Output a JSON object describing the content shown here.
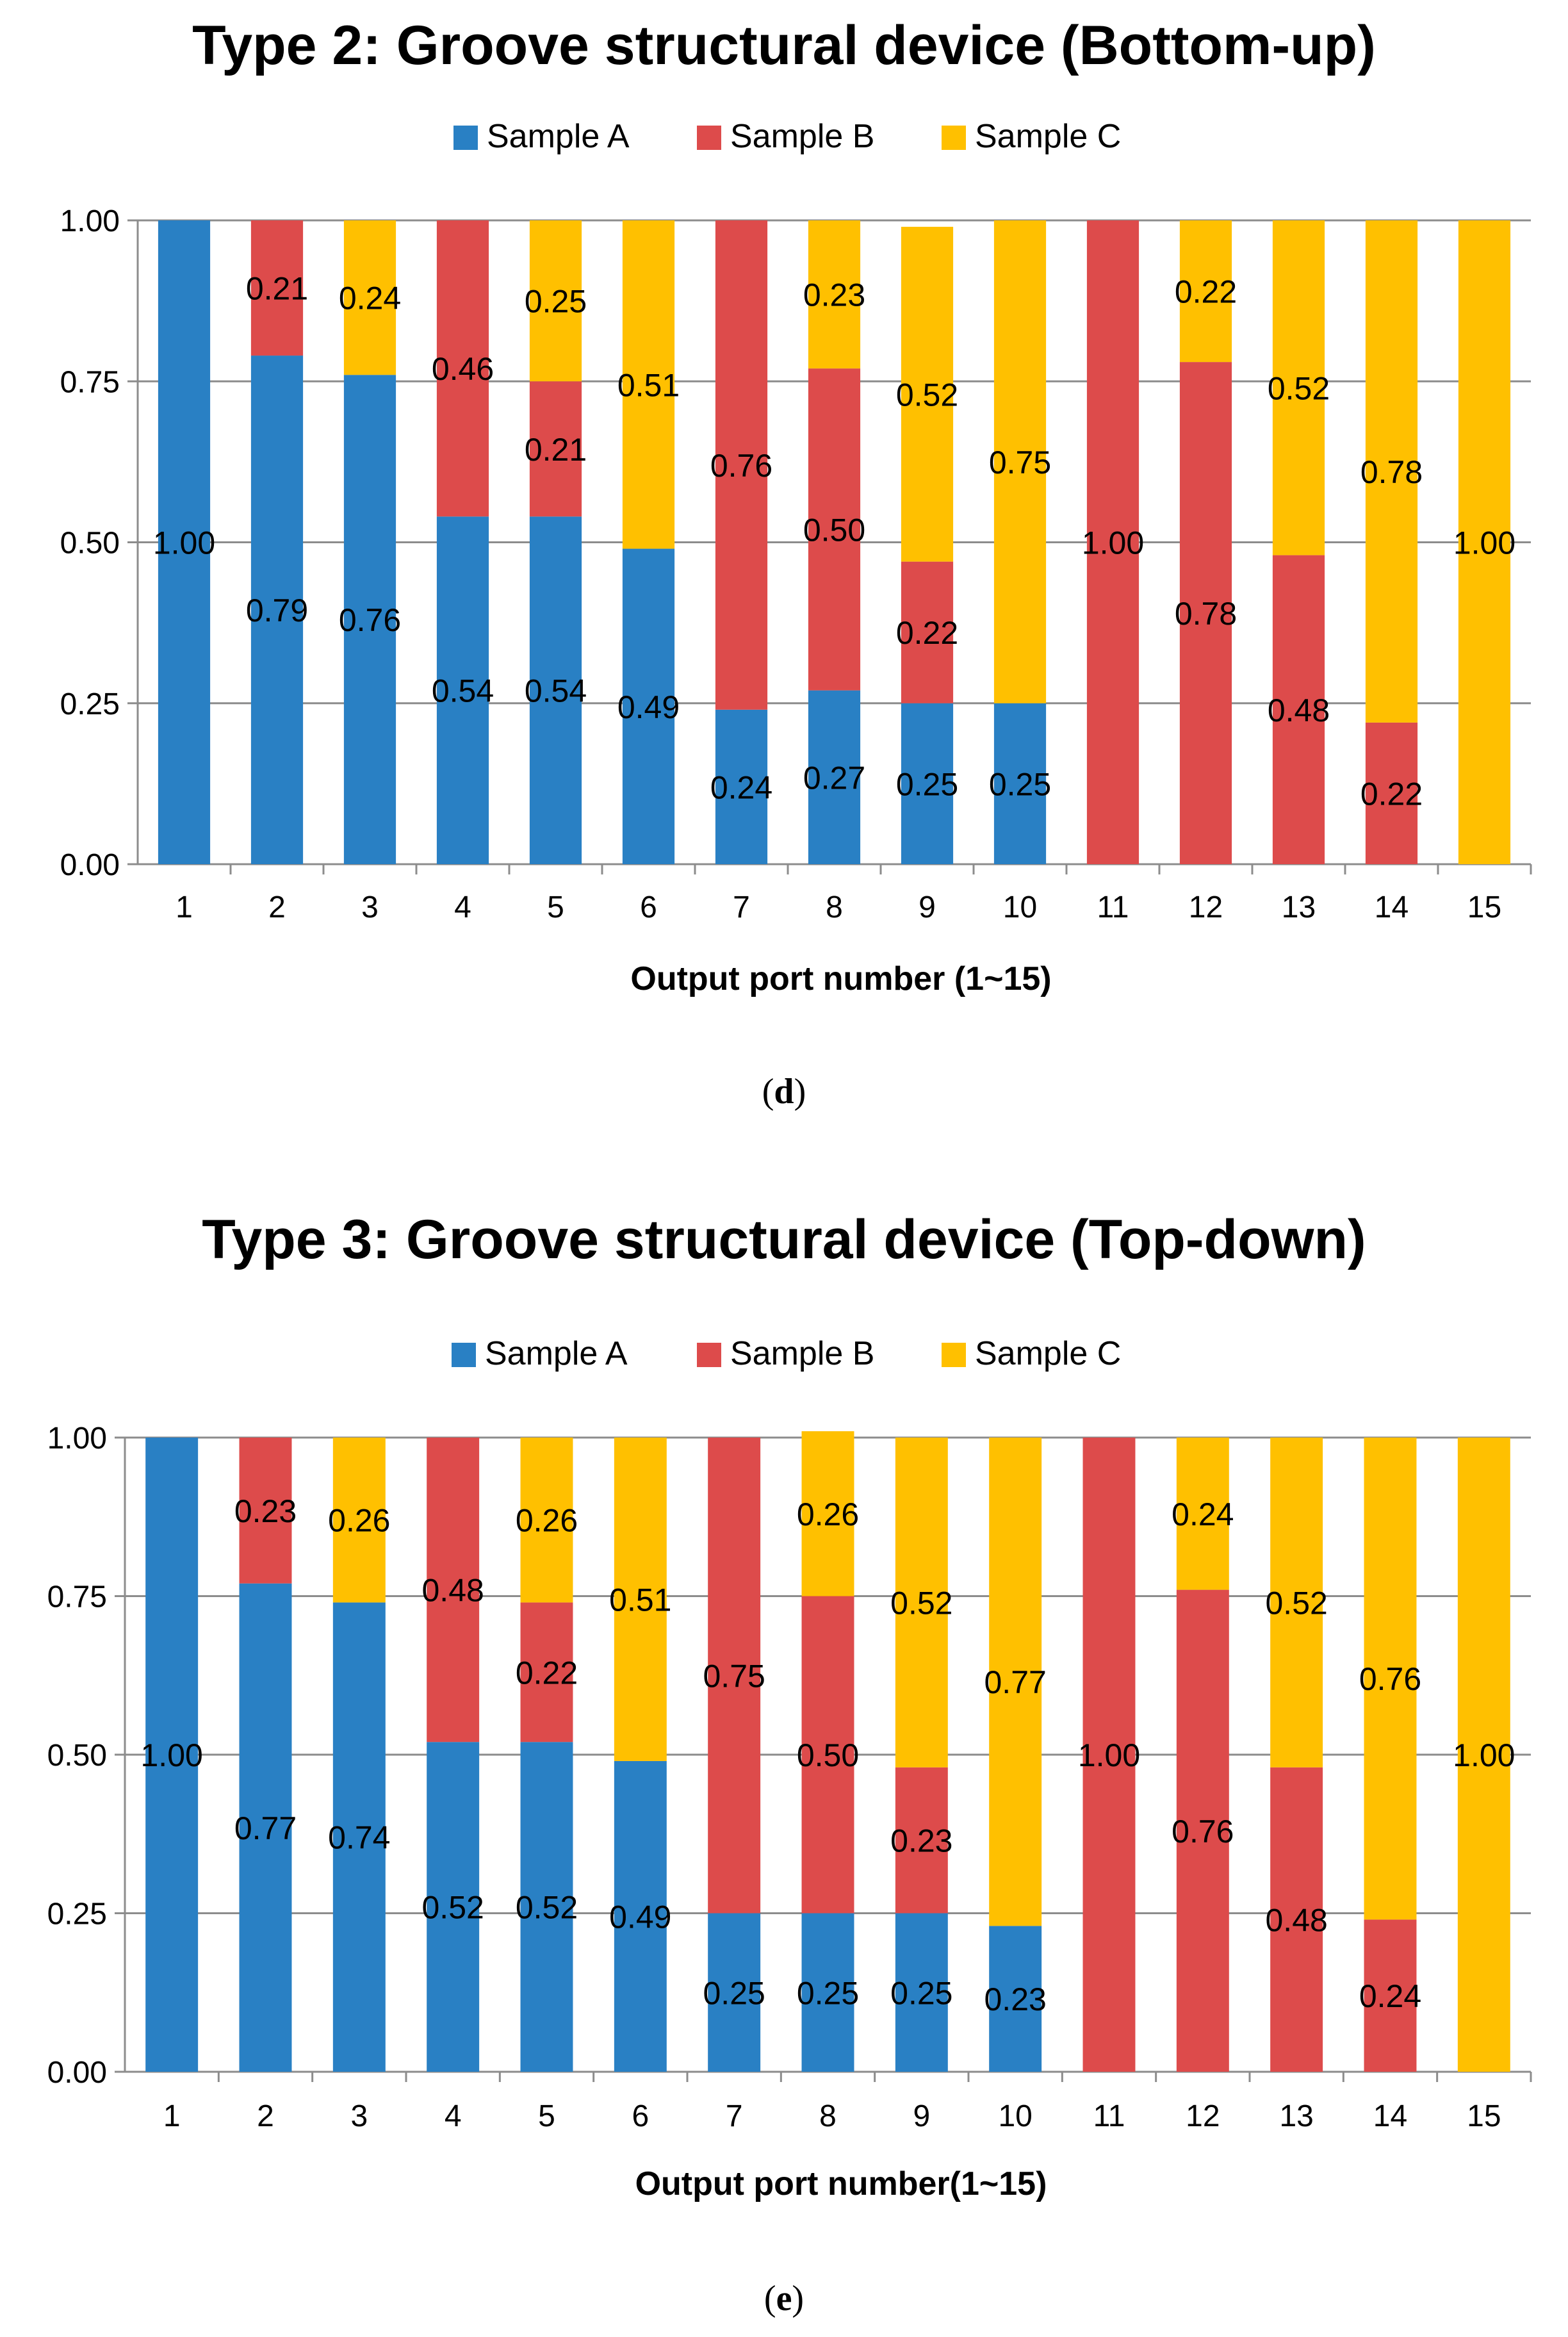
{
  "colors": {
    "sample_a": "#2980C4",
    "sample_b": "#DD4B4B",
    "sample_c": "#FFC000",
    "grid": "#8C8C8C",
    "axis": "#8C8C8C"
  },
  "chart_data": [
    {
      "type": "bar",
      "stacked": true,
      "title": "Type 2: Groove structural device (Bottom-up)",
      "xlabel": "Output  port number (1~15)",
      "ylabel": "",
      "ylim": [
        0,
        1
      ],
      "yticks": [
        "0.00",
        "0.25",
        "0.50",
        "0.75",
        "1.00"
      ],
      "legend": [
        "Sample A",
        "Sample B",
        "Sample C"
      ],
      "legend_position": "top",
      "grid": true,
      "caption": {
        "open": "(",
        "letter": "d",
        "close": ")"
      },
      "categories": [
        "1",
        "2",
        "3",
        "4",
        "5",
        "6",
        "7",
        "8",
        "9",
        "10",
        "11",
        "12",
        "13",
        "14",
        "15"
      ],
      "series": [
        {
          "name": "Sample A",
          "values": [
            1.0,
            0.79,
            0.76,
            0.54,
            0.54,
            0.49,
            0.24,
            0.27,
            0.25,
            0.25,
            0,
            0,
            0,
            0,
            0
          ],
          "labels": [
            "1.00",
            "0.79",
            "0.76",
            "0.54",
            "0.54",
            "0.49",
            "0.24",
            "0.27",
            "0.25",
            "0.25",
            "",
            "",
            "",
            "",
            ""
          ]
        },
        {
          "name": "Sample B",
          "values": [
            0,
            0.21,
            0,
            0.46,
            0.21,
            0,
            0.76,
            0.5,
            0.22,
            0,
            1.0,
            0.78,
            0.48,
            0.22,
            0
          ],
          "labels": [
            "",
            "0.21",
            "",
            "0.46",
            "0.21",
            "",
            "0.76",
            "0.50",
            "0.22",
            "",
            "1.00",
            "0.78",
            "0.48",
            "0.22",
            ""
          ]
        },
        {
          "name": "Sample C",
          "values": [
            0,
            0,
            0.24,
            0,
            0.25,
            0.51,
            0,
            0.23,
            0.52,
            0.75,
            0,
            0.22,
            0.52,
            0.78,
            1.0
          ],
          "labels": [
            "",
            "",
            "0.24",
            "",
            "0.25",
            "0.51",
            "",
            "0.23",
            "0.52",
            "0.75",
            "",
            "0.22",
            "0.52",
            "0.78",
            "1.00"
          ]
        }
      ]
    },
    {
      "type": "bar",
      "stacked": true,
      "title": "Type 3: Groove structural device (Top-down)",
      "xlabel": "Output port number(1~15)",
      "ylabel": "",
      "ylim": [
        0,
        1
      ],
      "yticks": [
        "0.00",
        "0.25",
        "0.50",
        "0.75",
        "1.00"
      ],
      "legend": [
        "Sample A",
        "Sample B",
        "Sample C"
      ],
      "legend_position": "top",
      "grid": true,
      "caption": {
        "open": "(",
        "letter": "e",
        "close": ")"
      },
      "categories": [
        "1",
        "2",
        "3",
        "4",
        "5",
        "6",
        "7",
        "8",
        "9",
        "10",
        "11",
        "12",
        "13",
        "14",
        "15"
      ],
      "series": [
        {
          "name": "Sample A",
          "values": [
            1.0,
            0.77,
            0.74,
            0.52,
            0.52,
            0.49,
            0.25,
            0.25,
            0.25,
            0.23,
            0,
            0,
            0,
            0,
            0
          ],
          "labels": [
            "1.00",
            "0.77",
            "0.74",
            "0.52",
            "0.52",
            "0.49",
            "0.25",
            "0.25",
            "0.25",
            "0.23",
            "",
            "",
            "",
            "",
            ""
          ]
        },
        {
          "name": "Sample B",
          "values": [
            0,
            0.23,
            0,
            0.48,
            0.22,
            0,
            0.75,
            0.5,
            0.23,
            0,
            1.0,
            0.76,
            0.48,
            0.24,
            0
          ],
          "labels": [
            "",
            "0.23",
            "",
            "0.48",
            "0.22",
            "",
            "0.75",
            "0.50",
            "0.23",
            "",
            "1.00",
            "0.76",
            "0.48",
            "0.24",
            ""
          ]
        },
        {
          "name": "Sample C",
          "values": [
            0,
            0,
            0.26,
            0,
            0.26,
            0.51,
            0,
            0.26,
            0.52,
            0.77,
            0,
            0.24,
            0.52,
            0.76,
            1.0
          ],
          "labels": [
            "",
            "",
            "0.26",
            "",
            "0.26",
            "0.51",
            "",
            "0.26",
            "0.52",
            "0.77",
            "",
            "0.24",
            "0.52",
            "0.76",
            "1.00"
          ]
        }
      ]
    }
  ]
}
